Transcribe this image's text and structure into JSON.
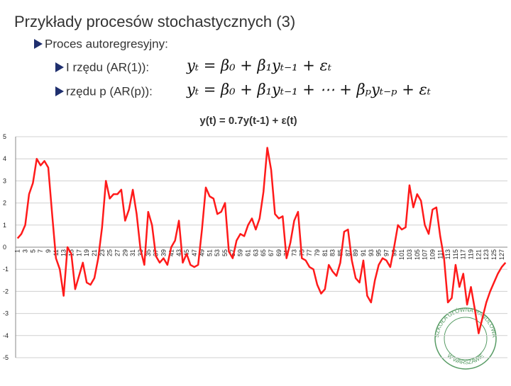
{
  "title": "Przykłady procesów stochastycznych (3)",
  "bullets": {
    "main": "Proces autoregresyjny:",
    "ar1": "I rzędu (AR(1)):",
    "arp": "rzędu p  (AR(p)):"
  },
  "formulas": {
    "ar1": "yₜ = β₀ + β₁yₜ₋₁ + εₜ",
    "arp": "yₜ = β₀ + β₁yₜ₋₁ + ⋯ + βₚyₜ₋ₚ + εₜ"
  },
  "logo": {
    "top": "SZKOŁA GŁÓWNA HANDLOWA",
    "bottom": "W WARSZAWIE"
  },
  "chart_data": {
    "type": "line",
    "title": "y(t) = 0.7y(t-1) + ε(t)",
    "categories": [
      1,
      null,
      3,
      null,
      5,
      null,
      7,
      null,
      9,
      null,
      11,
      null,
      13,
      null,
      15,
      null,
      17,
      null,
      19,
      null,
      21,
      null,
      23,
      null,
      25,
      null,
      27,
      null,
      29,
      null,
      31,
      null,
      33,
      null,
      35,
      null,
      37,
      null,
      39,
      null,
      41,
      null,
      43,
      null,
      45,
      null,
      47,
      null,
      49,
      null,
      51,
      null,
      53,
      null,
      55,
      null,
      57,
      null,
      59,
      null,
      61,
      null,
      63,
      null,
      65,
      null,
      67,
      null,
      69,
      null,
      71,
      null,
      73,
      null,
      75,
      null,
      77,
      null,
      79,
      null,
      81,
      null,
      83,
      null,
      85,
      null,
      87,
      null,
      89,
      null,
      91,
      null,
      93,
      null,
      95,
      null,
      97,
      null,
      99,
      null,
      101,
      null,
      103,
      null,
      105,
      null,
      107,
      null,
      109,
      null,
      111,
      null,
      113,
      null,
      115,
      null,
      117,
      null,
      119,
      null,
      121,
      null,
      123,
      null,
      125,
      null,
      127,
      null
    ],
    "series": [
      {
        "color": "#ff1a1a",
        "values": [
          0.4,
          0.6,
          1.0,
          2.4,
          2.9,
          4.0,
          3.7,
          3.9,
          3.6,
          1.5,
          -0.5,
          -1.0,
          -2.2,
          0.0,
          -0.3,
          -1.9,
          -1.3,
          -0.7,
          -1.6,
          -1.7,
          -1.4,
          -0.5,
          0.9,
          3.0,
          2.2,
          2.4,
          2.4,
          2.6,
          1.2,
          1.7,
          2.6,
          1.5,
          -0.1,
          -0.8,
          1.6,
          1.0,
          -0.4,
          -0.7,
          -0.5,
          -0.8,
          0.0,
          0.3,
          1.2,
          -0.7,
          -0.3,
          -0.8,
          -0.9,
          -0.8,
          0.8,
          2.7,
          2.3,
          2.2,
          1.5,
          1.6,
          2.0,
          -0.2,
          -0.5,
          0.3,
          0.6,
          0.5,
          1.0,
          1.3,
          0.8,
          1.3,
          2.5,
          4.5,
          3.5,
          1.5,
          1.3,
          1.4,
          -0.5,
          0.2,
          1.2,
          1.6,
          -0.5,
          -0.6,
          -0.9,
          -1.0,
          -1.7,
          -2.1,
          -1.9,
          -0.8,
          -1.1,
          -1.3,
          -0.7,
          0.7,
          0.8,
          -0.6,
          -1.4,
          -1.6,
          -0.6,
          -2.2,
          -2.5,
          -1.5,
          -0.8,
          -0.5,
          -0.6,
          -0.9,
          0.0,
          1.0,
          0.8,
          0.9,
          2.8,
          1.8,
          2.4,
          2.1,
          1.0,
          0.6,
          1.7,
          1.8,
          0.5,
          -0.5,
          -2.5,
          -2.3,
          -0.8,
          -1.8,
          -1.2,
          -2.6,
          -1.8,
          -2.8,
          -3.9,
          -3.2,
          -2.5,
          -2.0,
          -1.6,
          -1.2,
          -0.9,
          -0.7
        ]
      }
    ],
    "ylim": [
      -5,
      5
    ],
    "yticks": [
      -5,
      -4,
      -3,
      -2,
      -1,
      0,
      1,
      2,
      3,
      4,
      5
    ],
    "grid": true
  }
}
